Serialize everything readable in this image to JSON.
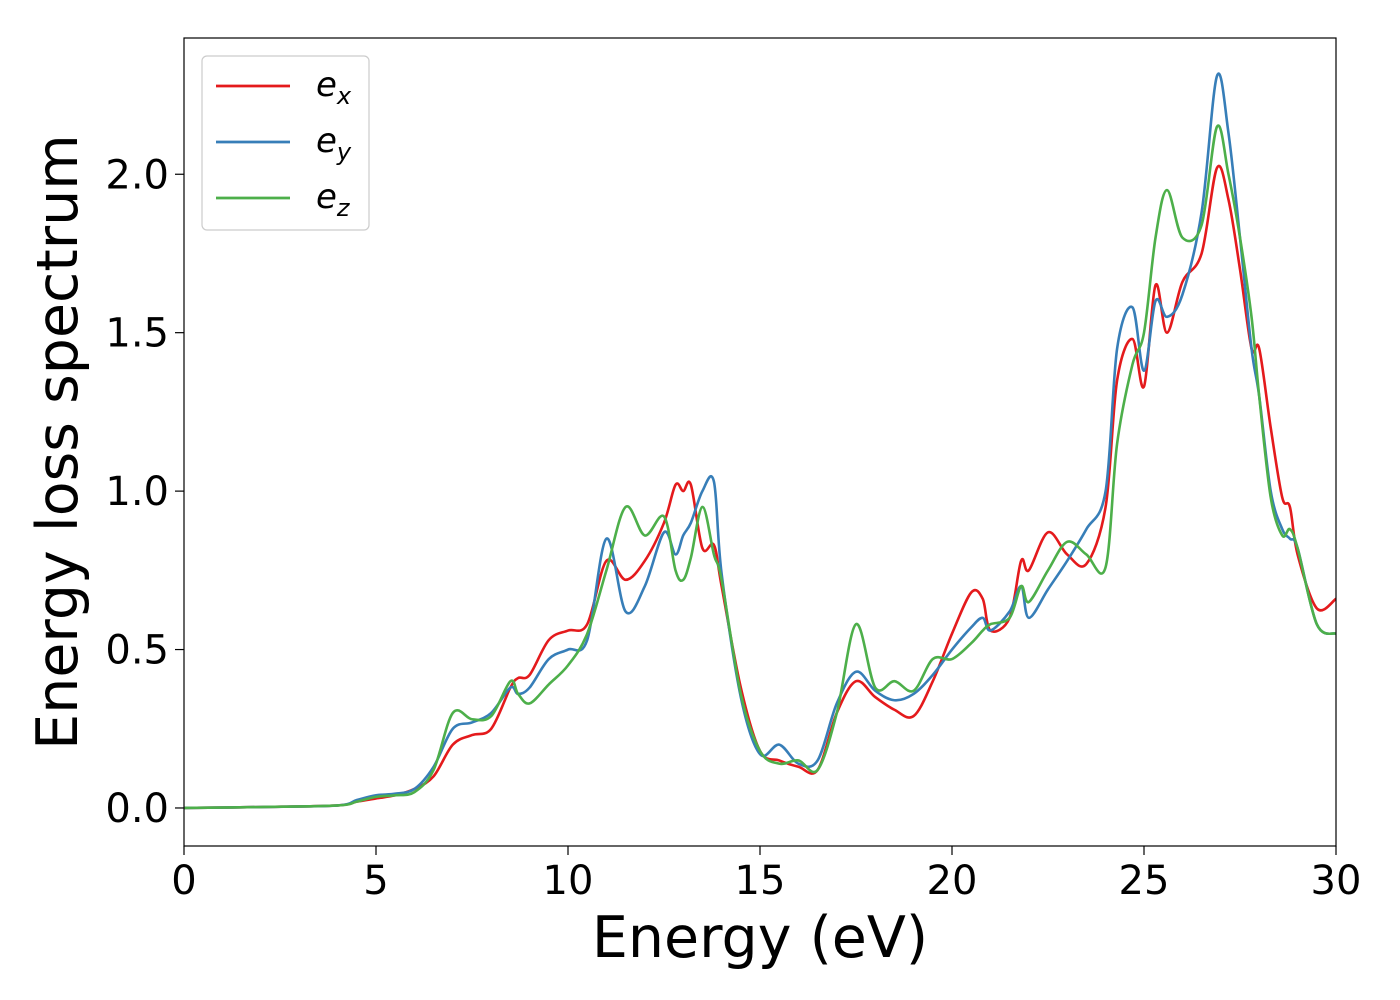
{
  "chart_data": {
    "type": "line",
    "xlabel": "Energy (eV)",
    "ylabel": "Energy loss spectrum",
    "xlim": [
      0,
      30
    ],
    "ylim": [
      -0.12,
      2.43
    ],
    "xticks": [
      0,
      5,
      10,
      15,
      20,
      25,
      30
    ],
    "xtick_labels": [
      "0",
      "5",
      "10",
      "15",
      "20",
      "25",
      "30"
    ],
    "yticks": [
      0.0,
      0.5,
      1.0,
      1.5,
      2.0
    ],
    "ytick_labels": [
      "0.0",
      "0.5",
      "1.0",
      "1.5",
      "2.0"
    ],
    "grid": false,
    "legend_position": "top-left",
    "series": [
      {
        "name": "e",
        "sub": "x",
        "color": "#e41a1c",
        "x": [
          0,
          2,
          4,
          4.5,
          5,
          5.5,
          6,
          6.5,
          7,
          7.5,
          8,
          8.5,
          8.7,
          9,
          9.5,
          10,
          10.5,
          11,
          11.5,
          12,
          12.5,
          12.8,
          13,
          13.2,
          13.5,
          13.8,
          14,
          14.5,
          15,
          15.5,
          16,
          16.5,
          17,
          17.5,
          18,
          18.5,
          19,
          19.5,
          20,
          20.5,
          20.8,
          21,
          21.5,
          21.8,
          22,
          22.5,
          23,
          23.5,
          24,
          24.3,
          24.7,
          25,
          25.3,
          25.6,
          26,
          26.5,
          26.9,
          27.2,
          27.5,
          27.8,
          28,
          28.3,
          28.6,
          28.8,
          29,
          29.5,
          30
        ],
        "y": [
          0,
          0.003,
          0.008,
          0.02,
          0.03,
          0.04,
          0.06,
          0.1,
          0.2,
          0.23,
          0.25,
          0.38,
          0.41,
          0.42,
          0.53,
          0.56,
          0.58,
          0.78,
          0.72,
          0.78,
          0.9,
          1.02,
          1.0,
          1.02,
          0.82,
          0.83,
          0.7,
          0.38,
          0.18,
          0.15,
          0.13,
          0.12,
          0.3,
          0.4,
          0.35,
          0.31,
          0.29,
          0.4,
          0.55,
          0.68,
          0.66,
          0.56,
          0.6,
          0.78,
          0.75,
          0.87,
          0.8,
          0.77,
          0.95,
          1.35,
          1.48,
          1.33,
          1.65,
          1.5,
          1.66,
          1.75,
          2.02,
          1.92,
          1.7,
          1.45,
          1.45,
          1.2,
          0.98,
          0.95,
          0.8,
          0.63,
          0.66
        ]
      },
      {
        "name": "e",
        "sub": "y",
        "color": "#377eb8",
        "x": [
          0,
          2,
          4,
          4.5,
          5,
          5.5,
          6,
          6.5,
          7,
          7.5,
          8,
          8.5,
          8.7,
          9,
          9.5,
          10,
          10.5,
          11,
          11.5,
          12,
          12.5,
          12.8,
          13,
          13.2,
          13.5,
          13.8,
          14,
          14.5,
          15,
          15.5,
          16,
          16.5,
          17,
          17.5,
          18,
          18.5,
          19,
          19.5,
          20,
          20.5,
          20.8,
          21,
          21.5,
          21.8,
          22,
          22.5,
          23,
          23.5,
          24,
          24.3,
          24.7,
          25,
          25.3,
          25.6,
          26,
          26.5,
          26.9,
          27.2,
          27.5,
          27.8,
          28,
          28.3,
          28.6,
          28.8,
          29,
          29.5,
          30
        ],
        "y": [
          0,
          0.003,
          0.008,
          0.025,
          0.04,
          0.045,
          0.06,
          0.13,
          0.25,
          0.27,
          0.3,
          0.38,
          0.36,
          0.38,
          0.47,
          0.5,
          0.53,
          0.85,
          0.62,
          0.7,
          0.87,
          0.8,
          0.86,
          0.9,
          1.0,
          1.03,
          0.74,
          0.35,
          0.17,
          0.2,
          0.14,
          0.15,
          0.33,
          0.43,
          0.37,
          0.34,
          0.36,
          0.42,
          0.5,
          0.57,
          0.6,
          0.56,
          0.62,
          0.7,
          0.6,
          0.69,
          0.78,
          0.88,
          1.0,
          1.45,
          1.58,
          1.38,
          1.6,
          1.55,
          1.62,
          1.88,
          2.31,
          2.13,
          1.8,
          1.45,
          1.3,
          1.0,
          0.88,
          0.85,
          0.82,
          0.58,
          0.55
        ]
      },
      {
        "name": "e",
        "sub": "z",
        "color": "#4daf4a",
        "x": [
          0,
          2,
          4,
          4.5,
          5,
          5.5,
          6,
          6.5,
          7,
          7.5,
          8,
          8.5,
          8.7,
          9,
          9.5,
          10,
          10.5,
          11,
          11.5,
          12,
          12.5,
          12.8,
          13,
          13.2,
          13.5,
          13.8,
          14,
          14.5,
          15,
          15.5,
          16,
          16.5,
          17,
          17.5,
          18,
          18.5,
          19,
          19.5,
          20,
          20.5,
          20.8,
          21,
          21.5,
          21.8,
          22,
          22.5,
          23,
          23.5,
          24,
          24.3,
          24.7,
          25,
          25.3,
          25.6,
          26,
          26.5,
          26.9,
          27.2,
          27.5,
          27.8,
          28,
          28.3,
          28.6,
          28.8,
          29,
          29.5,
          30
        ],
        "y": [
          0,
          0.003,
          0.008,
          0.02,
          0.035,
          0.04,
          0.05,
          0.12,
          0.3,
          0.28,
          0.29,
          0.4,
          0.36,
          0.33,
          0.39,
          0.45,
          0.55,
          0.75,
          0.95,
          0.86,
          0.92,
          0.75,
          0.72,
          0.79,
          0.95,
          0.8,
          0.72,
          0.36,
          0.18,
          0.14,
          0.15,
          0.12,
          0.3,
          0.58,
          0.38,
          0.4,
          0.37,
          0.47,
          0.47,
          0.52,
          0.56,
          0.58,
          0.6,
          0.7,
          0.65,
          0.75,
          0.84,
          0.8,
          0.76,
          1.15,
          1.4,
          1.5,
          1.8,
          1.95,
          1.8,
          1.84,
          2.15,
          2.0,
          1.8,
          1.55,
          1.3,
          0.98,
          0.86,
          0.88,
          0.82,
          0.58,
          0.55
        ]
      }
    ]
  }
}
